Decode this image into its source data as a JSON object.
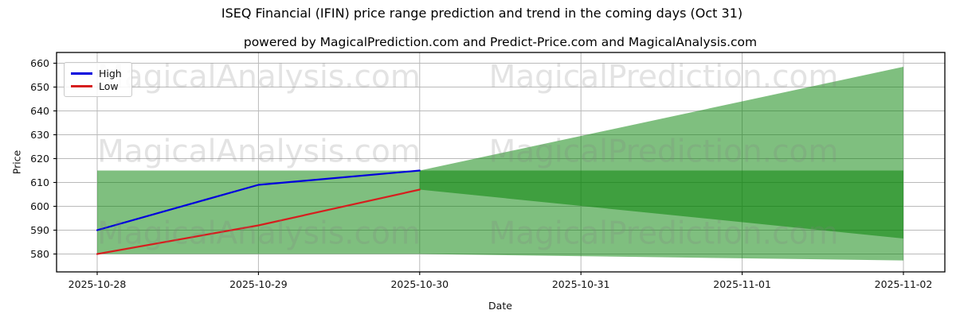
{
  "page": {
    "title": "ISEQ Financial (IFIN) price range prediction and trend in the coming days (Oct 31)",
    "subtitle": "powered by MagicalPrediction.com and Predict-Price.com and MagicalAnalysis.com"
  },
  "watermark": {
    "left_text": "MagicalAnalysis.com",
    "right_text": "MagicalPrediction.com"
  },
  "legend": {
    "items": [
      {
        "label": "High",
        "color": "#0000dd"
      },
      {
        "label": "Low",
        "color": "#d61e1e"
      }
    ]
  },
  "chart_data": {
    "type": "line",
    "title": "ISEQ Financial (IFIN) price range prediction and trend in the coming days (Oct 31)",
    "xlabel": "Date",
    "ylabel": "Price",
    "x_tick_labels": [
      "2025-10-28",
      "2025-10-29",
      "2025-10-30",
      "2025-10-31",
      "2025-11-01",
      "2025-11-02"
    ],
    "y_tick_labels": [
      580,
      590,
      600,
      610,
      620,
      630,
      640,
      650,
      660
    ],
    "ylim": [
      572.5,
      664.5
    ],
    "grid": true,
    "legend_position": "upper left",
    "series": [
      {
        "name": "High",
        "color": "#0000dd",
        "x": [
          "2025-10-28",
          "2025-10-29",
          "2025-10-30"
        ],
        "values": [
          590,
          609,
          615
        ]
      },
      {
        "name": "Low",
        "color": "#d61e1e",
        "x": [
          "2025-10-28",
          "2025-10-29",
          "2025-10-30"
        ],
        "values": [
          580,
          592,
          607
        ]
      }
    ],
    "bands": [
      {
        "name": "observed-range-band",
        "color": "#008000",
        "opacity": 0.5,
        "points": [
          [
            "2025-10-28",
            615
          ],
          [
            "2025-11-02",
            615
          ],
          [
            "2025-11-02",
            577.3
          ],
          [
            "2025-10-30",
            580
          ],
          [
            "2025-10-28",
            580
          ]
        ]
      },
      {
        "name": "prediction-fan",
        "color": "#008000",
        "opacity": 0.5,
        "points": [
          [
            "2025-10-30",
            615
          ],
          [
            "2025-11-02",
            658.5
          ],
          [
            "2025-11-02",
            586.5
          ],
          [
            "2025-10-30",
            607
          ]
        ]
      }
    ]
  }
}
